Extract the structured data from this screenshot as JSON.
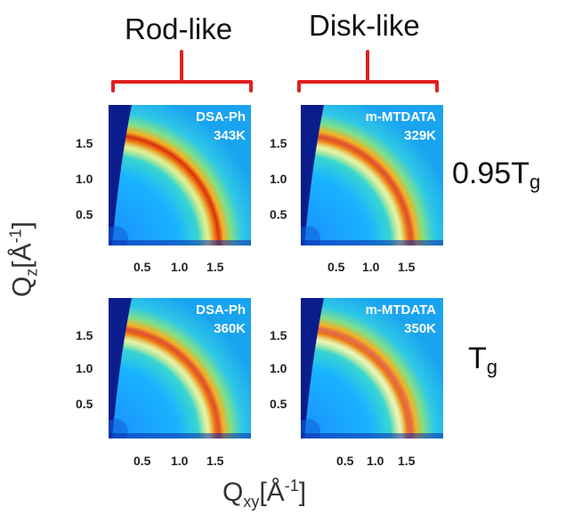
{
  "columns": [
    {
      "title": "Rod-like"
    },
    {
      "title": "Disk-like"
    }
  ],
  "rows": [
    {
      "value": "0.95T",
      "sub": "g"
    },
    {
      "value": "T",
      "sub": "g"
    }
  ],
  "panels": [
    {
      "material": "DSA-Ph",
      "temperature": "343K",
      "ring": "strong"
    },
    {
      "material": "m-MTDATA",
      "temperature": "329K",
      "ring": "medium"
    },
    {
      "material": "DSA-Ph",
      "temperature": "360K",
      "ring": "medium"
    },
    {
      "material": "m-MTDATA",
      "temperature": "350K",
      "ring": "weak"
    }
  ],
  "y_ticks": [
    "1.5",
    "1.0",
    "0.5"
  ],
  "x_ticks": [
    "0.5",
    "1.0",
    "1.5"
  ],
  "ylabel": {
    "main": "Q",
    "sub": "z",
    "rest": "[Å",
    "sup": "-1",
    "end": "]"
  },
  "xlabel": {
    "main": "Q",
    "sub": "xy",
    "rest": "[Å",
    "sup": "-1",
    "end": "]"
  },
  "colors": {
    "bracket": "#e02020",
    "colormap": "jet"
  }
}
